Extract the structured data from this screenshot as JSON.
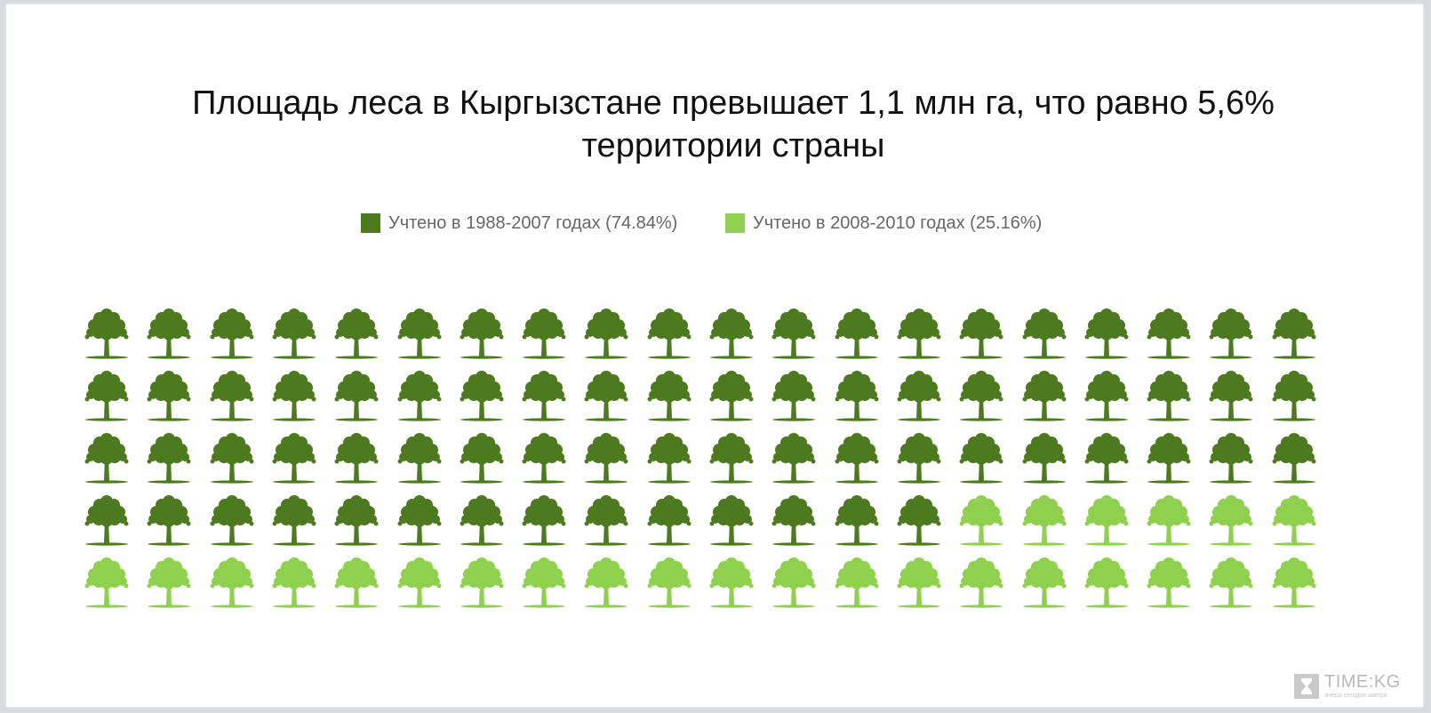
{
  "chart_data": {
    "type": "pictogram",
    "title_lines": [
      "Площадь леса в Кыргызстане превышает 1,1 млн га, что равно 5,6%",
      "территории страны"
    ],
    "total_icons": 100,
    "icon": "tree-icon",
    "series": [
      {
        "name": "Учтено в 1988-2007 годах (74.84%)",
        "percent": 74.84,
        "icons": 74,
        "color": "#4d7a1e"
      },
      {
        "name": "Учтено в 2008-2010 годах (25.16%)",
        "percent": 25.16,
        "icons": 26,
        "color": "#8fd14f"
      }
    ],
    "legend_position": "top-center"
  },
  "watermark": {
    "brand": "TIME:KG",
    "tagline": "вчера сегодня завтра",
    "icon": "hourglass-icon"
  }
}
